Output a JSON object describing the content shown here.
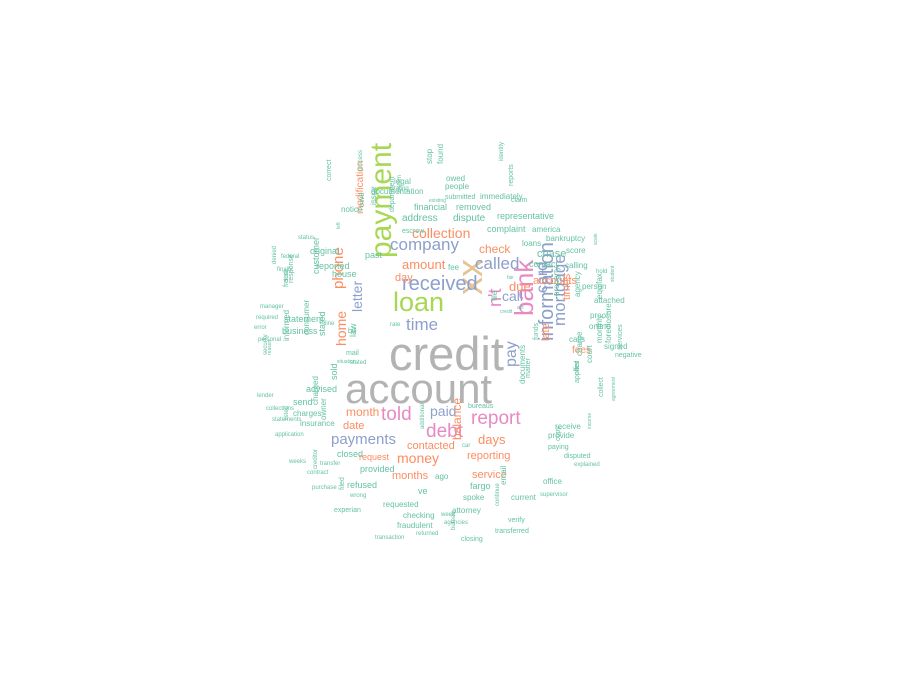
{
  "palette": {
    "teal": "#66c2a5",
    "orange": "#fc8d62",
    "blue": "#8da0cb",
    "pink": "#e78ac3",
    "green": "#a6d854",
    "gold": "#e5c494",
    "grey": "#b3b3b3"
  },
  "words": [
    {
      "text": "credit",
      "color": "grey"
    },
    {
      "text": "account",
      "color": "grey"
    },
    {
      "text": "xx",
      "color": "gold"
    },
    {
      "text": "payment",
      "color": "green"
    },
    {
      "text": "loan",
      "color": "green"
    },
    {
      "text": "bank",
      "color": "pink"
    },
    {
      "text": "n't",
      "color": "pink"
    },
    {
      "text": "information",
      "color": "blue"
    },
    {
      "text": "mortgage",
      "color": "blue"
    },
    {
      "text": "card",
      "color": "blue"
    },
    {
      "text": "received",
      "color": "blue"
    },
    {
      "text": "company",
      "color": "blue"
    },
    {
      "text": "called",
      "color": "blue"
    },
    {
      "text": "time",
      "color": "blue"
    },
    {
      "text": "told",
      "color": "pink"
    },
    {
      "text": "debt",
      "color": "pink"
    },
    {
      "text": "report",
      "color": "pink"
    },
    {
      "text": "payments",
      "color": "blue"
    },
    {
      "text": "paid",
      "color": "blue"
    },
    {
      "text": "pay",
      "color": "blue"
    },
    {
      "text": "call",
      "color": "blue"
    },
    {
      "text": "phone",
      "color": "orange"
    },
    {
      "text": "letter",
      "color": "blue"
    },
    {
      "text": "collection",
      "color": "orange"
    },
    {
      "text": "amount",
      "color": "orange"
    },
    {
      "text": "money",
      "color": "orange"
    },
    {
      "text": "due",
      "color": "orange"
    },
    {
      "text": "days",
      "color": "orange"
    },
    {
      "text": "check",
      "color": "orange"
    },
    {
      "text": "accounts",
      "color": "orange"
    },
    {
      "text": "home",
      "color": "orange"
    },
    {
      "text": "month",
      "color": "orange"
    },
    {
      "text": "date",
      "color": "orange"
    },
    {
      "text": "day",
      "color": "orange"
    },
    {
      "text": "balance",
      "color": "orange"
    },
    {
      "text": "reporting",
      "color": "orange"
    },
    {
      "text": "contacted",
      "color": "orange"
    },
    {
      "text": "months",
      "color": "orange"
    },
    {
      "text": "service",
      "color": "orange"
    },
    {
      "text": "times",
      "color": "orange"
    },
    {
      "text": "late",
      "color": "orange"
    },
    {
      "text": "fees",
      "color": "orange"
    },
    {
      "text": "request",
      "color": "orange"
    },
    {
      "text": "modification",
      "color": "orange"
    },
    {
      "text": "chase",
      "color": "teal"
    },
    {
      "text": "contact",
      "color": "teal"
    },
    {
      "text": "file",
      "color": "teal"
    },
    {
      "text": "dispute",
      "color": "teal"
    },
    {
      "text": "address",
      "color": "teal"
    },
    {
      "text": "complaint",
      "color": "teal"
    },
    {
      "text": "financial",
      "color": "teal"
    },
    {
      "text": "removed",
      "color": "teal"
    },
    {
      "text": "representative",
      "color": "teal"
    },
    {
      "text": "loans",
      "color": "teal"
    },
    {
      "text": "america",
      "color": "teal"
    },
    {
      "text": "bankruptcy",
      "color": "teal"
    },
    {
      "text": "score",
      "color": "teal"
    },
    {
      "text": "calling",
      "color": "teal"
    },
    {
      "text": "person",
      "color": "teal"
    },
    {
      "text": "agency",
      "color": "teal"
    },
    {
      "text": "property",
      "color": "teal"
    },
    {
      "text": "calls",
      "color": "teal"
    },
    {
      "text": "equifax",
      "color": "teal"
    },
    {
      "text": "monthly",
      "color": "teal"
    },
    {
      "text": "foreclosure",
      "color": "teal"
    },
    {
      "text": "online",
      "color": "teal"
    },
    {
      "text": "signed",
      "color": "teal"
    },
    {
      "text": "attached",
      "color": "teal"
    },
    {
      "text": "proof",
      "color": "teal"
    },
    {
      "text": "services",
      "color": "teal"
    },
    {
      "text": "collect",
      "color": "teal"
    },
    {
      "text": "court",
      "color": "teal"
    },
    {
      "text": "receive",
      "color": "teal"
    },
    {
      "text": "provide",
      "color": "teal"
    },
    {
      "text": "paying",
      "color": "teal"
    },
    {
      "text": "disputed",
      "color": "teal"
    },
    {
      "text": "copy",
      "color": "teal"
    },
    {
      "text": "charge",
      "color": "teal"
    },
    {
      "text": "applied",
      "color": "teal"
    },
    {
      "text": "offer",
      "color": "teal"
    },
    {
      "text": "funds",
      "color": "teal"
    },
    {
      "text": "office",
      "color": "teal"
    },
    {
      "text": "supervisor",
      "color": "teal"
    },
    {
      "text": "explained",
      "color": "teal"
    },
    {
      "text": "documents",
      "color": "teal"
    },
    {
      "text": "matter",
      "color": "teal"
    },
    {
      "text": "bureaus",
      "color": "teal"
    },
    {
      "text": "fargo",
      "color": "teal"
    },
    {
      "text": "email",
      "color": "teal"
    },
    {
      "text": "current",
      "color": "teal"
    },
    {
      "text": "spoke",
      "color": "teal"
    },
    {
      "text": "attorney",
      "color": "teal"
    },
    {
      "text": "checking",
      "color": "teal"
    },
    {
      "text": "fraudulent",
      "color": "teal"
    },
    {
      "text": "agencies",
      "color": "teal"
    },
    {
      "text": "verify",
      "color": "teal"
    },
    {
      "text": "transferred",
      "color": "teal"
    },
    {
      "text": "closing",
      "color": "teal"
    },
    {
      "text": "returned",
      "color": "teal"
    },
    {
      "text": "transaction",
      "color": "teal"
    },
    {
      "text": "bureau",
      "color": "teal"
    },
    {
      "text": "continue",
      "color": "teal"
    },
    {
      "text": "ago",
      "color": "teal"
    },
    {
      "text": "ve",
      "color": "teal"
    },
    {
      "text": "requested",
      "color": "teal"
    },
    {
      "text": "refused",
      "color": "teal"
    },
    {
      "text": "provided",
      "color": "teal"
    },
    {
      "text": "closed",
      "color": "teal"
    },
    {
      "text": "filed",
      "color": "teal"
    },
    {
      "text": "experian",
      "color": "teal"
    },
    {
      "text": "wrong",
      "color": "teal"
    },
    {
      "text": "additional",
      "color": "teal"
    },
    {
      "text": "fee",
      "color": "teal"
    },
    {
      "text": "past",
      "color": "teal"
    },
    {
      "text": "house",
      "color": "teal"
    },
    {
      "text": "mail",
      "color": "teal"
    },
    {
      "text": "law",
      "color": "teal"
    },
    {
      "text": "bill",
      "color": "teal"
    },
    {
      "text": "rate",
      "color": "teal"
    },
    {
      "text": "sold",
      "color": "teal"
    },
    {
      "text": "stated",
      "color": "teal"
    },
    {
      "text": "customer",
      "color": "teal"
    },
    {
      "text": "reported",
      "color": "teal"
    },
    {
      "text": "original",
      "color": "teal"
    },
    {
      "text": "advised",
      "color": "teal"
    },
    {
      "text": "send",
      "color": "teal"
    },
    {
      "text": "charges",
      "color": "teal"
    },
    {
      "text": "insurance",
      "color": "teal"
    },
    {
      "text": "business",
      "color": "teal"
    },
    {
      "text": "statement",
      "color": "teal"
    },
    {
      "text": "informed",
      "color": "teal"
    },
    {
      "text": "consumer",
      "color": "teal"
    },
    {
      "text": "fraud",
      "color": "teal"
    },
    {
      "text": "response",
      "color": "teal"
    },
    {
      "text": "charged",
      "color": "teal"
    },
    {
      "text": "owner",
      "color": "teal"
    },
    {
      "text": "correct",
      "color": "teal"
    },
    {
      "text": "notice",
      "color": "teal"
    },
    {
      "text": "documentation",
      "color": "teal"
    },
    {
      "text": "legal",
      "color": "teal"
    },
    {
      "text": "stop",
      "color": "teal"
    },
    {
      "text": "found",
      "color": "teal"
    },
    {
      "text": "owed",
      "color": "teal"
    },
    {
      "text": "people",
      "color": "teal"
    },
    {
      "text": "submitted",
      "color": "teal"
    },
    {
      "text": "immediately",
      "color": "teal"
    },
    {
      "text": "reports",
      "color": "teal"
    },
    {
      "text": "claim",
      "color": "teal"
    },
    {
      "text": "escrow",
      "color": "teal"
    },
    {
      "text": "department",
      "color": "teal"
    },
    {
      "text": "issue",
      "color": "teal"
    },
    {
      "text": "owe",
      "color": "teal"
    },
    {
      "text": "process",
      "color": "teal"
    },
    {
      "text": "stating",
      "color": "teal"
    },
    {
      "text": "existing",
      "color": "teal"
    },
    {
      "text": "system",
      "color": "teal"
    },
    {
      "text": "identity",
      "color": "teal"
    },
    {
      "text": "hold",
      "color": "teal"
    },
    {
      "text": "scale",
      "color": "teal"
    },
    {
      "text": "student",
      "color": "teal"
    },
    {
      "text": "negative",
      "color": "teal"
    },
    {
      "text": "agreement",
      "color": "teal"
    },
    {
      "text": "income",
      "color": "teal"
    },
    {
      "text": "status",
      "color": "teal"
    },
    {
      "text": "federal",
      "color": "teal"
    },
    {
      "text": "finally",
      "color": "teal"
    },
    {
      "text": "denied",
      "color": "teal"
    },
    {
      "text": "close",
      "color": "teal"
    },
    {
      "text": "manager",
      "color": "teal"
    },
    {
      "text": "required",
      "color": "teal"
    },
    {
      "text": "error",
      "color": "teal"
    },
    {
      "text": "personal",
      "color": "teal"
    },
    {
      "text": "security",
      "color": "teal"
    },
    {
      "text": "reason",
      "color": "teal"
    },
    {
      "text": "lender",
      "color": "teal"
    },
    {
      "text": "collections",
      "color": "teal"
    },
    {
      "text": "statements",
      "color": "teal"
    },
    {
      "text": "application",
      "color": "teal"
    },
    {
      "text": "listed",
      "color": "teal"
    },
    {
      "text": "weeks",
      "color": "teal"
    },
    {
      "text": "contract",
      "color": "teal"
    },
    {
      "text": "purchase",
      "color": "teal"
    },
    {
      "text": "transfer",
      "color": "teal"
    },
    {
      "text": "creditor",
      "color": "teal"
    },
    {
      "text": "week",
      "color": "teal"
    },
    {
      "text": "fair",
      "color": "teal"
    },
    {
      "text": "credit",
      "color": "teal"
    },
    {
      "text": "act",
      "color": "teal"
    },
    {
      "text": "car",
      "color": "teal"
    },
    {
      "text": "line",
      "color": "teal"
    },
    {
      "text": "left",
      "color": "teal"
    },
    {
      "text": "stated",
      "color": "teal"
    },
    {
      "text": "situation",
      "color": "teal"
    },
    {
      "text": "mortgage",
      "color": "teal"
    },
    {
      "text": "ca",
      "color": "teal"
    }
  ]
}
